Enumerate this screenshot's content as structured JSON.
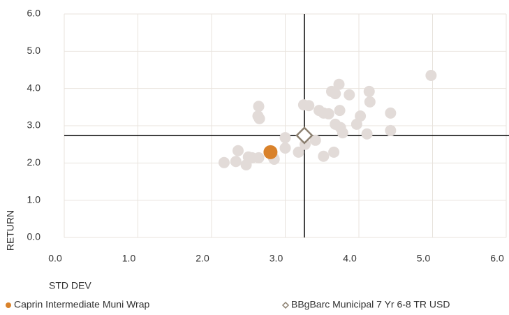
{
  "chart_data": {
    "type": "scatter",
    "xlabel": "STD DEV",
    "ylabel": "RETURN",
    "xlim": [
      0,
      6
    ],
    "ylim": [
      0,
      6
    ],
    "xticks": [
      {
        "value": 0,
        "label": "0.0"
      },
      {
        "value": 1,
        "label": "1.0"
      },
      {
        "value": 2,
        "label": "2.0"
      },
      {
        "value": 3,
        "label": "3.0"
      },
      {
        "value": 4,
        "label": "4.0"
      },
      {
        "value": 5,
        "label": "5.0"
      },
      {
        "value": 6,
        "label": "6.0"
      }
    ],
    "yticks": [
      {
        "value": 0,
        "label": "0.0"
      },
      {
        "value": 1,
        "label": "1.0"
      },
      {
        "value": 2,
        "label": "2.0"
      },
      {
        "value": 3,
        "label": "3.0"
      },
      {
        "value": 4,
        "label": "4.0"
      },
      {
        "value": 5,
        "label": "5.0"
      },
      {
        "value": 6,
        "label": "6.0"
      }
    ],
    "grid": true,
    "series": [
      {
        "color": "#e2dbd8",
        "x": [
          2.17,
          2.36,
          2.33,
          2.5,
          2.47,
          2.55,
          2.64,
          2.84,
          2.85,
          2.64,
          2.63,
          2.65,
          3.0,
          3.0,
          3.18,
          3.27,
          3.25,
          3.32,
          3.41,
          3.46,
          3.52,
          3.59,
          3.52,
          3.66,
          3.63,
          3.68,
          3.73,
          3.74,
          3.68,
          3.75,
          3.78,
          3.87,
          3.97,
          4.02,
          4.11,
          4.14,
          4.15,
          4.43,
          4.43,
          4.98
        ],
        "y": [
          2.01,
          2.33,
          2.04,
          2.16,
          1.95,
          2.14,
          2.14,
          2.14,
          2.1,
          3.52,
          3.26,
          3.19,
          2.68,
          2.4,
          2.29,
          2.5,
          3.56,
          3.54,
          2.61,
          3.41,
          3.34,
          3.32,
          2.18,
          2.29,
          3.92,
          3.86,
          4.11,
          3.41,
          3.04,
          2.95,
          2.81,
          3.83,
          3.04,
          3.26,
          2.78,
          3.92,
          3.64,
          3.34,
          2.87,
          4.35
        ]
      },
      {
        "name": "Caprin Intermediate Muni Wrap",
        "color": "#d9822b",
        "x": [
          2.8
        ],
        "y": [
          2.29
        ]
      },
      {
        "name": "BBgBarc Municipal 7 Yr 6-8 TR USD",
        "color": "#8c8070",
        "marker": "diamond",
        "x": [
          3.26
        ],
        "y": [
          2.74
        ]
      }
    ]
  }
}
